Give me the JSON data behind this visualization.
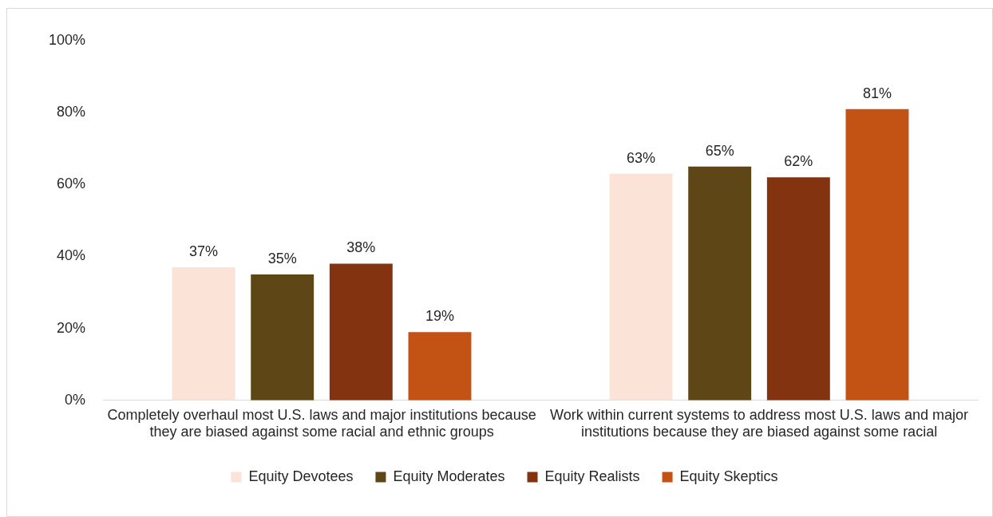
{
  "chart_data": {
    "type": "bar",
    "categories": [
      "Completely overhaul most U.S. laws and major institutions because they are biased against some racial and ethnic groups",
      "Work within current systems to address most U.S. laws and major institutions because they are biased against some racial"
    ],
    "series": [
      {
        "name": "Equity Devotees",
        "color": "#fbe3d7",
        "values": [
          37,
          63
        ],
        "value_labels": [
          "37%",
          "63%"
        ]
      },
      {
        "name": "Equity Moderates",
        "color": "#5e4617",
        "values": [
          35,
          65
        ],
        "value_labels": [
          "35%",
          "65%"
        ]
      },
      {
        "name": "Equity Realists",
        "color": "#83330f",
        "values": [
          38,
          62
        ],
        "value_labels": [
          "38%",
          "62%"
        ]
      },
      {
        "name": "Equity Skeptics",
        "color": "#c35215",
        "values": [
          19,
          81
        ],
        "value_labels": [
          "19%",
          "81%"
        ]
      }
    ],
    "ylim": [
      0,
      100
    ],
    "yticks": [
      {
        "value": 0,
        "label": "0%"
      },
      {
        "value": 20,
        "label": "20%"
      },
      {
        "value": 40,
        "label": "40%"
      },
      {
        "value": 60,
        "label": "60%"
      },
      {
        "value": 80,
        "label": "80%"
      },
      {
        "value": 100,
        "label": "100%"
      }
    ],
    "grid": false,
    "legend": "bottom"
  }
}
